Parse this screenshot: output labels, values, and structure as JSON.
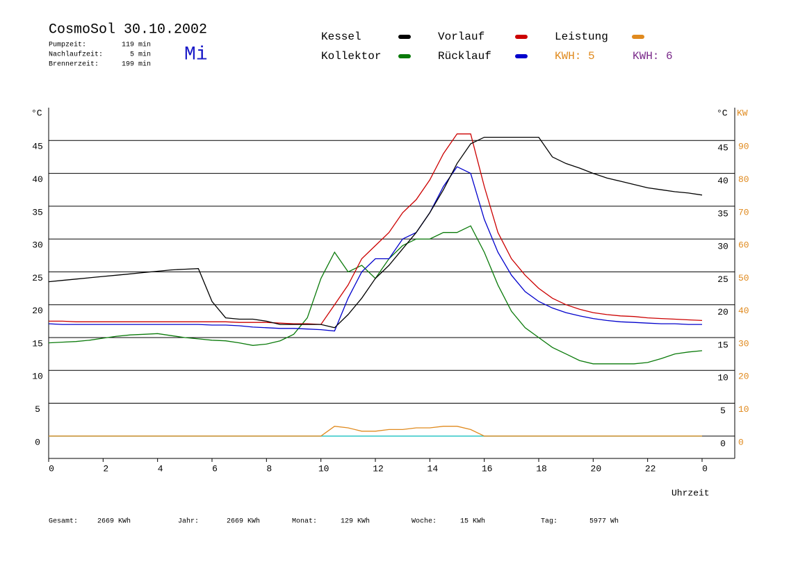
{
  "chart_data": {
    "type": "line",
    "title": "CosmoSol 30.10.2002",
    "weekday": "Mi",
    "info": [
      {
        "label": "Pumpzeit:",
        "value": "119 min"
      },
      {
        "label": "Nachlaufzeit:",
        "value": "5 min"
      },
      {
        "label": "Brennerzeit:",
        "value": "199 min"
      }
    ],
    "annotations": [
      {
        "text": "KWH: 5",
        "color": "#e08a1e"
      },
      {
        "text": "KWH: 6",
        "color": "#7a2a8a"
      }
    ],
    "y_label": "°C",
    "y2_label": "KW",
    "x_label": "Uhrzeit",
    "x": [
      0,
      0.5,
      1,
      1.5,
      2,
      2.5,
      3,
      3.5,
      4,
      4.5,
      5,
      5.5,
      6,
      6.5,
      7,
      7.5,
      8,
      8.5,
      9,
      9.5,
      10,
      10.5,
      11,
      11.5,
      12,
      12.5,
      13,
      13.5,
      14,
      14.5,
      15,
      15.5,
      16,
      16.5,
      17,
      17.5,
      18,
      18.5,
      19,
      19.5,
      20,
      20.5,
      21,
      21.5,
      22,
      22.5,
      23,
      23.5,
      24
    ],
    "series": [
      {
        "name": "Kessel",
        "color": "#000000",
        "values": [
          23.5,
          23.7,
          23.9,
          24.1,
          24.3,
          24.5,
          24.7,
          24.9,
          25.1,
          25.3,
          25.4,
          25.5,
          20.5,
          18,
          17.8,
          17.8,
          17.5,
          17,
          17,
          17,
          17,
          16.5,
          18.5,
          21,
          24,
          26,
          28.5,
          31,
          34,
          37.5,
          41.5,
          44.5,
          45.5,
          45.5,
          45.5,
          45.5,
          45.5,
          42.5,
          41.5,
          40.8,
          40,
          39.3,
          38.8,
          38.3,
          37.8,
          37.5,
          37.2,
          37,
          36.7
        ]
      },
      {
        "name": "Kollektor",
        "color": "#0a7a0a",
        "values": [
          14.2,
          14.3,
          14.4,
          14.6,
          14.9,
          15.2,
          15.4,
          15.5,
          15.6,
          15.3,
          15,
          14.8,
          14.6,
          14.5,
          14.2,
          13.8,
          14,
          14.5,
          15.5,
          18,
          24,
          28,
          25,
          26,
          24,
          27,
          29,
          30,
          30,
          31,
          31,
          32,
          28,
          23,
          19,
          16.5,
          15,
          13.5,
          12.5,
          11.5,
          11,
          11,
          11,
          11,
          11.2,
          11.8,
          12.5,
          12.8,
          13
        ]
      },
      {
        "name": "Vorlauf",
        "color": "#cc0000",
        "values": [
          17.5,
          17.5,
          17.4,
          17.4,
          17.4,
          17.4,
          17.4,
          17.4,
          17.4,
          17.4,
          17.4,
          17.4,
          17.4,
          17.4,
          17.3,
          17.3,
          17.3,
          17.2,
          17.1,
          17.1,
          17,
          20,
          23,
          27,
          29,
          31,
          34,
          36,
          39,
          43,
          46,
          46,
          38,
          31,
          27,
          24.5,
          22.5,
          21,
          20,
          19.3,
          18.8,
          18.5,
          18.3,
          18.2,
          18,
          17.9,
          17.8,
          17.7,
          17.6
        ]
      },
      {
        "name": "Rücklauf",
        "color": "#0000cc",
        "values": [
          17.1,
          17,
          17,
          17,
          17,
          17,
          17,
          17,
          17,
          17,
          17,
          17,
          16.9,
          16.9,
          16.8,
          16.6,
          16.5,
          16.4,
          16.4,
          16.3,
          16.2,
          16,
          21,
          25,
          27,
          27,
          30,
          31,
          34,
          38,
          41,
          40,
          33,
          28,
          24.5,
          22,
          20.5,
          19.5,
          18.8,
          18.3,
          17.9,
          17.6,
          17.4,
          17.3,
          17.2,
          17.1,
          17.1,
          17,
          17
        ]
      },
      {
        "name": "Leistung",
        "color": "#e08a1e",
        "axis": "y2",
        "values": [
          0,
          0,
          0,
          0,
          0,
          0,
          0,
          0,
          0,
          0,
          0,
          0,
          0,
          0,
          0,
          0,
          0,
          0,
          0,
          0,
          0,
          3,
          2.5,
          1.5,
          1.5,
          2,
          2,
          2.5,
          2.5,
          3,
          3,
          2,
          0,
          0,
          0,
          0,
          0,
          0,
          0,
          0,
          0,
          0,
          0,
          0,
          0,
          0,
          0,
          0,
          0
        ]
      }
    ],
    "xlim": [
      0,
      25.2
    ],
    "xticks": [
      0,
      2,
      4,
      6,
      8,
      10,
      12,
      14,
      16,
      18,
      20,
      22,
      {
        "value": 24,
        "label": "0"
      }
    ],
    "ylim": [
      -3.4,
      50
    ],
    "yticks": [
      0,
      5,
      10,
      15,
      20,
      25,
      30,
      35,
      40,
      45
    ],
    "y2lim": [
      -6.8,
      100
    ],
    "y2ticks": [
      0,
      10,
      20,
      30,
      40,
      50,
      60,
      70,
      80,
      90
    ],
    "grid": true,
    "baseline_color": "#33cccc",
    "footer": [
      {
        "label": "Gesamt:",
        "value": "2669 KWh"
      },
      {
        "label": "Jahr:",
        "value": "2669 KWh"
      },
      {
        "label": "Monat:",
        "value": "129 KWh"
      },
      {
        "label": "Woche:",
        "value": "15 KWh"
      },
      {
        "label": "Tag:",
        "value": "5977 Wh"
      }
    ]
  }
}
